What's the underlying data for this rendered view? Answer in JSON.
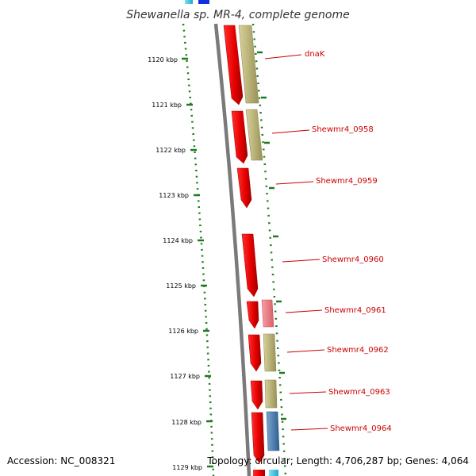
{
  "title": "Shewanella sp. MR-4, complete genome",
  "footer": {
    "accession": "Accession: NC_008321",
    "summary": "Topology: circular; Length: 4,706,287 bp; Genes: 4,064"
  },
  "ruler": {
    "tick_labels": [
      "1120 kbp",
      "1121 kbp",
      "1122 kbp",
      "1123 kbp",
      "1124 kbp",
      "1125 kbp",
      "1126 kbp",
      "1127 kbp",
      "1128 kbp",
      "1129 kbp"
    ]
  },
  "gene_labels": [
    "dnaK",
    "Shewmr4_0958",
    "Shewmr4_0959",
    "Shewmr4_0960",
    "Shewmr4_0961",
    "Shewmr4_0962",
    "Shewmr4_0963",
    "Shewmr4_0964"
  ],
  "colors": {
    "gene_forward": "#ee0000",
    "feature_tan": "#b5ad6a",
    "feature_pink": "#ee7f86",
    "feature_blue": "#4a7fb0",
    "backbone": "#7a7a7a",
    "tick_green": "#1f7a1f",
    "label_red": "#cc0000"
  }
}
